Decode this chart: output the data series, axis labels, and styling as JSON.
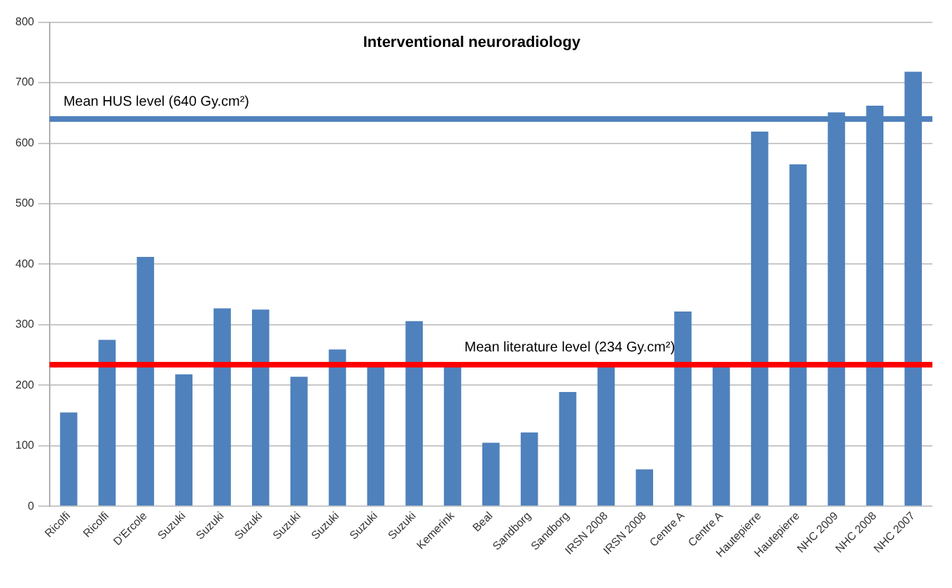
{
  "chart_data": {
    "type": "bar",
    "title": "Interventional neuroradiology",
    "categories": [
      "Ricolfi",
      "Ricolfi",
      "D'Ercole",
      "Suzuki",
      "Suzuki",
      "Suzuki",
      "Suzuki",
      "Suzuki",
      "Suzuki",
      "Suzuki",
      "Kemerink",
      "Beal",
      "Sandborg",
      "Sandborg",
      "IRSN 2008",
      "IRSN 2008",
      "Centre A",
      "Centre A",
      "Hautepierre",
      "Hautepierre",
      "NHC 2009",
      "NHC 2008",
      "NHC 2007"
    ],
    "values": [
      155,
      275,
      412,
      218,
      327,
      325,
      214,
      259,
      230,
      306,
      230,
      105,
      122,
      189,
      230,
      61,
      322,
      230,
      619,
      565,
      651,
      662,
      718
    ],
    "color": "#4f81bd",
    "ylim": [
      0,
      800
    ],
    "yticks": [
      0,
      100,
      200,
      300,
      400,
      500,
      600,
      700,
      800
    ],
    "grid": "y",
    "ref_lines": [
      {
        "axis": "y",
        "value": 640,
        "label": "Mean HUS level (640 Gy.cm²)",
        "color": "#4f81bd"
      },
      {
        "axis": "y",
        "value": 234,
        "label": "Mean literature level (234 Gy.cm²)",
        "color": "#ff0000"
      }
    ]
  }
}
